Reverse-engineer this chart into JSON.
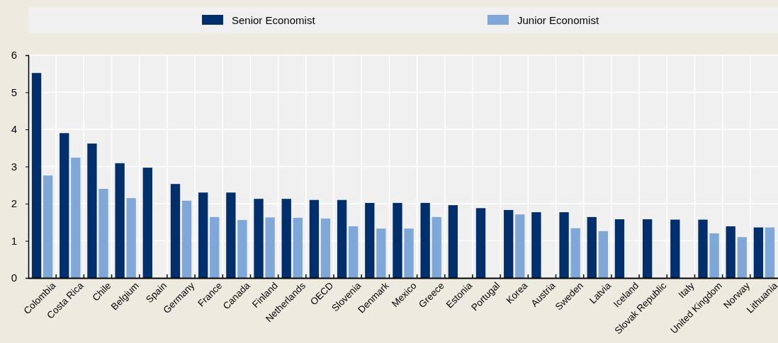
{
  "chart_data": {
    "type": "bar",
    "categories": [
      "Colombia",
      "Costa Rica",
      "Chile",
      "Belgium",
      "Spain",
      "Germany",
      "France",
      "Canada",
      "Finland",
      "Netherlands",
      "OECD",
      "Slovenia",
      "Denmark",
      "Mexico",
      "Greece",
      "Estonia",
      "Portugal",
      "Korea",
      "Austria",
      "Sweden",
      "Latvia",
      "Iceland",
      "Slovak Republic",
      "Italy",
      "United Kingdom",
      "Norway",
      "Lithuania"
    ],
    "series": [
      {
        "name": "Senior Economist",
        "color": "#002f6c",
        "values": [
          5.52,
          3.9,
          3.62,
          3.09,
          2.97,
          2.53,
          2.3,
          2.3,
          2.13,
          2.13,
          2.1,
          2.1,
          2.02,
          2.02,
          2.02,
          1.96,
          1.88,
          1.83,
          1.77,
          1.77,
          1.64,
          1.58,
          1.58,
          1.57,
          1.57,
          1.39,
          1.36
        ]
      },
      {
        "name": "Junior Economist",
        "color": "#7fa8d9",
        "values": [
          2.76,
          3.24,
          2.4,
          2.15,
          null,
          2.08,
          1.64,
          1.56,
          1.63,
          1.62,
          1.6,
          1.39,
          1.33,
          1.33,
          1.64,
          null,
          null,
          1.71,
          null,
          1.34,
          1.26,
          null,
          null,
          null,
          1.2,
          1.1,
          1.36
        ]
      }
    ],
    "ylim": [
      0,
      6
    ],
    "yticks": [
      0,
      1,
      2,
      3,
      4,
      5,
      6
    ],
    "grid": true,
    "legend": "top"
  }
}
